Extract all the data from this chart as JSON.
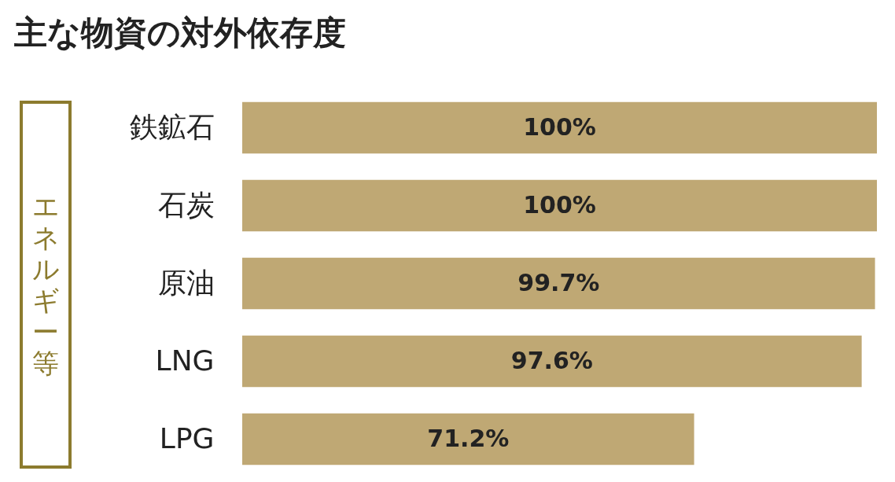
{
  "chart_data": {
    "type": "bar",
    "orientation": "horizontal",
    "title": "主な物資の対外依存度",
    "categories": [
      "鉄鉱石",
      "石炭",
      "原油",
      "LNG",
      "LPG"
    ],
    "values": [
      100,
      100,
      99.7,
      97.6,
      71.2
    ],
    "value_labels": [
      "100%",
      "100%",
      "99.7%",
      "97.6%",
      "71.2%"
    ],
    "color": "#bfa874",
    "annotations": [
      "エネルギー等"
    ]
  }
}
